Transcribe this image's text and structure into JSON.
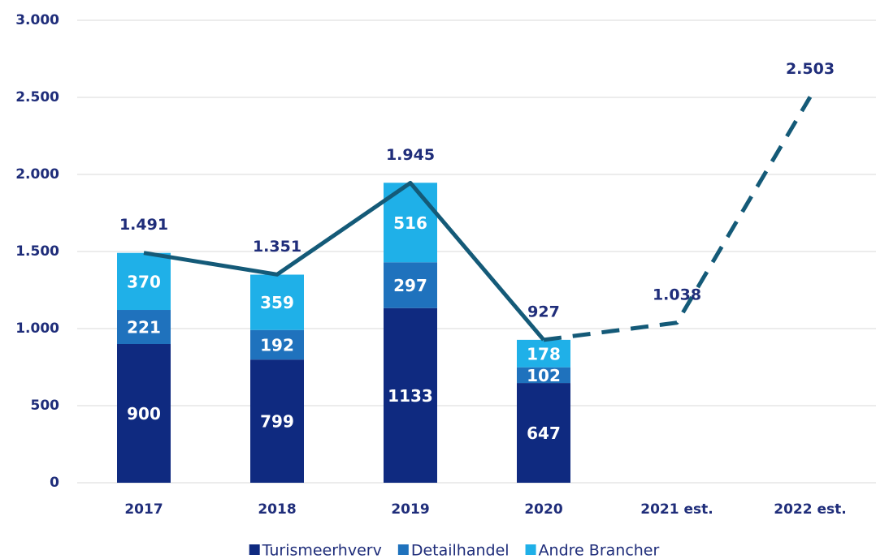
{
  "chart_data": {
    "type": "stacked_bar_line",
    "categories": [
      "2017",
      "2018",
      "2019",
      "2020",
      "2021 est.",
      "2022 est."
    ],
    "series": [
      {
        "name": "Turismeerhverv",
        "color": "#0f2a80",
        "values": [
          900,
          799,
          1133,
          647,
          null,
          null
        ]
      },
      {
        "name": "Detailhandel",
        "color": "#1f72bd",
        "values": [
          221,
          192,
          297,
          102,
          null,
          null
        ]
      },
      {
        "name": "Andre Brancher",
        "color": "#1fb0e8",
        "values": [
          370,
          359,
          516,
          178,
          null,
          null
        ]
      }
    ],
    "line": {
      "color": "#145a78",
      "values": [
        1491,
        1351,
        1945,
        927,
        1038,
        2503
      ],
      "value_labels": [
        "1.491",
        "1.351",
        "1.945",
        "927",
        "1.038",
        "2.503"
      ],
      "dashed_from": 3
    },
    "ylim": [
      0,
      3000
    ],
    "yticks": [
      0,
      500,
      {
        "value": 1000,
        "label": "1.000"
      },
      {
        "value": 1500,
        "label": "1.500"
      },
      {
        "value": 2000,
        "label": "2.000"
      },
      {
        "value": 2500,
        "label": "2.500"
      },
      {
        "value": 3000,
        "label": "3.000"
      }
    ],
    "grid": true,
    "legend": "bottom"
  }
}
